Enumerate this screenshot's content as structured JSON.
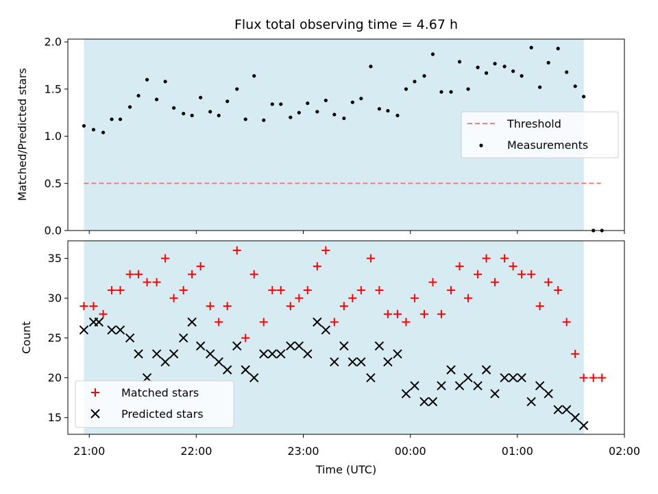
{
  "chart_data": [
    {
      "type": "scatter",
      "title": "Flux total observing time = 4.67 h",
      "xlabel": "",
      "ylabel": "Matched/Predicted stars",
      "x_unit": "hours since 21:00 UTC",
      "xlim": [
        -0.2,
        5.0
      ],
      "ylim": [
        0.0,
        2.03
      ],
      "yticks": [
        "0.0",
        "0.5",
        "1.0",
        "1.5",
        "2.0"
      ],
      "ytick_values": [
        0.0,
        0.5,
        1.0,
        1.5,
        2.0
      ],
      "observing_window": [
        -0.05,
        4.62
      ],
      "threshold": {
        "name": "Threshold",
        "value": 0.5,
        "x": [
          -0.05,
          4.78
        ],
        "color": "#f08080"
      },
      "measurements": {
        "name": "Measurements",
        "color": "#000000",
        "x": [
          -0.05,
          0.04,
          0.13,
          0.21,
          0.29,
          0.38,
          0.46,
          0.54,
          0.63,
          0.71,
          0.79,
          0.88,
          0.96,
          1.04,
          1.13,
          1.21,
          1.29,
          1.38,
          1.46,
          1.54,
          1.63,
          1.71,
          1.79,
          1.88,
          1.96,
          2.04,
          2.13,
          2.21,
          2.29,
          2.38,
          2.46,
          2.54,
          2.63,
          2.71,
          2.79,
          2.88,
          2.96,
          3.04,
          3.13,
          3.21,
          3.29,
          3.38,
          3.46,
          3.54,
          3.63,
          3.71,
          3.79,
          3.88,
          3.96,
          4.04,
          4.13,
          4.21,
          4.29,
          4.38,
          4.46,
          4.54,
          4.62,
          4.71,
          4.79
        ],
        "y": [
          1.11,
          1.07,
          1.04,
          1.18,
          1.18,
          1.31,
          1.43,
          1.6,
          1.39,
          1.58,
          1.3,
          1.24,
          1.22,
          1.41,
          1.26,
          1.22,
          1.37,
          1.5,
          1.18,
          1.64,
          1.17,
          1.34,
          1.34,
          1.2,
          1.25,
          1.35,
          1.26,
          1.38,
          1.23,
          1.19,
          1.36,
          1.4,
          1.74,
          1.29,
          1.27,
          1.22,
          1.5,
          1.58,
          1.64,
          1.87,
          1.47,
          1.47,
          1.79,
          1.5,
          1.73,
          1.67,
          1.77,
          1.74,
          1.69,
          1.64,
          1.94,
          1.52,
          1.78,
          1.93,
          1.68,
          1.53,
          1.42,
          0.0,
          0.0
        ]
      },
      "legend": {
        "position": "center-right",
        "entries": [
          "Threshold",
          "Measurements"
        ]
      }
    },
    {
      "type": "scatter",
      "title": "",
      "xlabel": "Time (UTC)",
      "ylabel": "Count",
      "x_unit": "hours since 21:00 UTC",
      "xlim": [
        -0.2,
        5.0
      ],
      "ylim": [
        12.9,
        37.2
      ],
      "xticks": [
        "21:00",
        "22:00",
        "23:00",
        "00:00",
        "01:00",
        "02:00"
      ],
      "xtick_values": [
        0,
        1,
        2,
        3,
        4,
        5
      ],
      "yticks": [
        "15",
        "20",
        "25",
        "30",
        "35"
      ],
      "ytick_values": [
        15,
        20,
        25,
        30,
        35
      ],
      "observing_window": [
        -0.05,
        4.62
      ],
      "series": [
        {
          "name": "Matched stars",
          "marker": "+",
          "color": "#ff0000",
          "x": [
            -0.05,
            0.04,
            0.13,
            0.21,
            0.29,
            0.38,
            0.46,
            0.54,
            0.63,
            0.71,
            0.79,
            0.88,
            0.96,
            1.04,
            1.13,
            1.21,
            1.29,
            1.38,
            1.46,
            1.54,
            1.63,
            1.71,
            1.79,
            1.88,
            1.96,
            2.04,
            2.13,
            2.21,
            2.29,
            2.38,
            2.46,
            2.54,
            2.63,
            2.71,
            2.79,
            2.88,
            2.96,
            3.04,
            3.13,
            3.21,
            3.29,
            3.38,
            3.46,
            3.54,
            3.63,
            3.71,
            3.79,
            3.88,
            3.96,
            4.04,
            4.13,
            4.21,
            4.29,
            4.38,
            4.46,
            4.54,
            4.62,
            4.71,
            4.79
          ],
          "y": [
            29,
            29,
            28,
            31,
            31,
            33,
            33,
            32,
            32,
            35,
            30,
            31,
            33,
            34,
            29,
            27,
            29,
            36,
            25,
            33,
            27,
            31,
            31,
            29,
            30,
            31,
            34,
            36,
            27,
            29,
            30,
            31,
            35,
            31,
            28,
            28,
            27,
            30,
            28,
            32,
            28,
            31,
            34,
            30,
            33,
            35,
            32,
            35,
            34,
            33,
            33,
            29,
            32,
            31,
            27,
            23,
            20,
            20,
            20
          ]
        },
        {
          "name": "Predicted stars",
          "marker": "x",
          "color": "#000000",
          "x": [
            -0.05,
            0.04,
            0.09,
            0.21,
            0.29,
            0.38,
            0.46,
            0.54,
            0.63,
            0.71,
            0.79,
            0.88,
            0.96,
            1.04,
            1.13,
            1.21,
            1.29,
            1.38,
            1.46,
            1.54,
            1.63,
            1.71,
            1.79,
            1.88,
            1.96,
            2.04,
            2.13,
            2.21,
            2.29,
            2.38,
            2.46,
            2.54,
            2.63,
            2.71,
            2.79,
            2.88,
            2.96,
            3.04,
            3.13,
            3.21,
            3.29,
            3.38,
            3.46,
            3.54,
            3.63,
            3.71,
            3.79,
            3.88,
            3.96,
            4.04,
            4.13,
            4.21,
            4.29,
            4.38,
            4.46,
            4.54,
            4.62
          ],
          "y": [
            26,
            27,
            27,
            26,
            26,
            25,
            23,
            20,
            23,
            22,
            23,
            25,
            27,
            24,
            23,
            22,
            21,
            24,
            21,
            20,
            23,
            23,
            23,
            24,
            24,
            23,
            27,
            26,
            22,
            24,
            22,
            22,
            20,
            24,
            22,
            23,
            18,
            19,
            17,
            17,
            19,
            21,
            19,
            20,
            19,
            21,
            18,
            20,
            20,
            20,
            17,
            19,
            18,
            16,
            16,
            15,
            14
          ]
        }
      ],
      "legend": {
        "position": "lower-left",
        "entries": [
          "Matched stars",
          "Predicted stars"
        ]
      }
    }
  ]
}
